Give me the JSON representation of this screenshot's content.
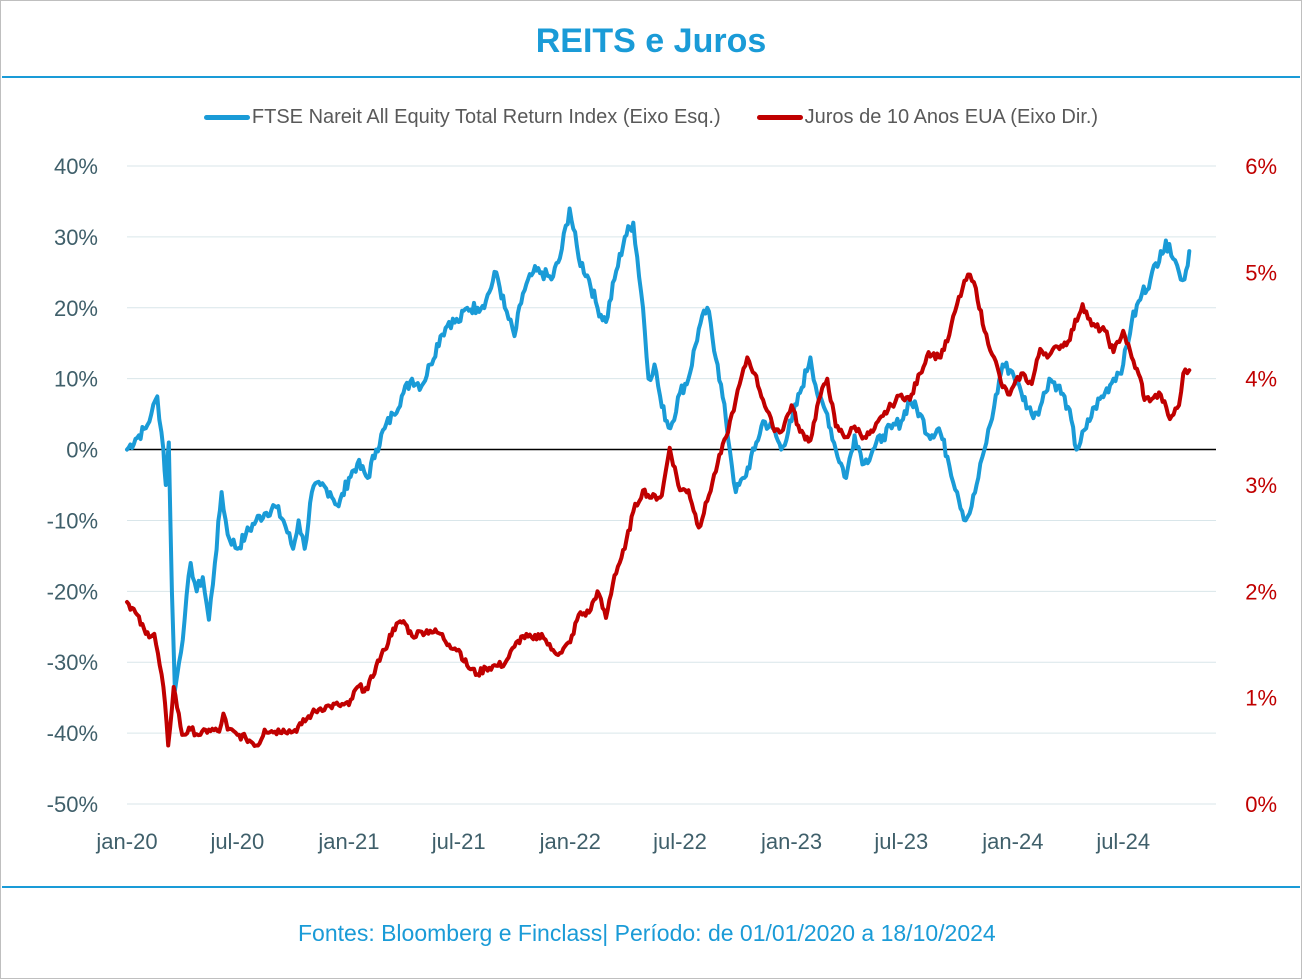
{
  "title": "REITS e Juros",
  "source_text": "Fontes: Bloomberg e Finclass| Período: de 01/01/2020 a 18/10/2024",
  "legend": [
    {
      "label": "FTSE Nareit All Equity Total Return Index (Eixo Esq.)",
      "color": "#1a9bd7"
    },
    {
      "label": "Juros de 10 Anos EUA (Eixo Dir.)",
      "color": "#c00000"
    }
  ],
  "chart_data": {
    "type": "line",
    "title": "REITS e Juros",
    "x_ticks": [
      "jan-20",
      "jul-20",
      "jan-21",
      "jul-21",
      "jan-22",
      "jul-22",
      "jan-23",
      "jul-23",
      "jan-24",
      "jul-24"
    ],
    "y_left": {
      "ticks": [
        "40%",
        "30%",
        "20%",
        "10%",
        "0%",
        "-10%",
        "-20%",
        "-30%",
        "-40%",
        "-50%"
      ],
      "range": [
        -50,
        40
      ],
      "unit": "%"
    },
    "y_right": {
      "ticks": [
        "6%",
        "5%",
        "4%",
        "3%",
        "2%",
        "1%",
        "0%"
      ],
      "range": [
        0,
        6
      ],
      "unit": "%"
    },
    "grid": "horizontal",
    "legend_position": "top",
    "series": [
      {
        "name": "FTSE Nareit All Equity Total Return Index (Eixo Esq.)",
        "axis": "left",
        "color": "#1a9bd7",
        "points": [
          [
            "2020-01-01",
            0
          ],
          [
            "2020-01-15",
            1.5
          ],
          [
            "2020-02-01",
            3
          ],
          [
            "2020-02-10",
            5
          ],
          [
            "2020-02-20",
            7.5
          ],
          [
            "2020-03-01",
            0
          ],
          [
            "2020-03-05",
            -5
          ],
          [
            "2020-03-10",
            1
          ],
          [
            "2020-03-15",
            -20
          ],
          [
            "2020-03-20",
            -34
          ],
          [
            "2020-03-27",
            -30
          ],
          [
            "2020-04-05",
            -24
          ],
          [
            "2020-04-15",
            -16
          ],
          [
            "2020-04-25",
            -20
          ],
          [
            "2020-05-05",
            -18
          ],
          [
            "2020-05-15",
            -24
          ],
          [
            "2020-05-25",
            -16
          ],
          [
            "2020-06-05",
            -6
          ],
          [
            "2020-06-15",
            -12
          ],
          [
            "2020-07-01",
            -14
          ],
          [
            "2020-07-15",
            -12
          ],
          [
            "2020-08-01",
            -10
          ],
          [
            "2020-08-15",
            -9
          ],
          [
            "2020-09-01",
            -8
          ],
          [
            "2020-09-15",
            -10
          ],
          [
            "2020-10-01",
            -14
          ],
          [
            "2020-10-10",
            -10
          ],
          [
            "2020-10-20",
            -14
          ],
          [
            "2020-11-01",
            -6
          ],
          [
            "2020-11-15",
            -5
          ],
          [
            "2020-12-01",
            -6
          ],
          [
            "2020-12-15",
            -8
          ],
          [
            "2021-01-01",
            -4
          ],
          [
            "2021-01-15",
            -2
          ],
          [
            "2021-02-01",
            -4
          ],
          [
            "2021-02-15",
            0
          ],
          [
            "2021-03-01",
            3
          ],
          [
            "2021-03-15",
            5
          ],
          [
            "2021-04-01",
            8
          ],
          [
            "2021-04-15",
            10
          ],
          [
            "2021-05-01",
            9
          ],
          [
            "2021-05-15",
            12
          ],
          [
            "2021-06-01",
            16
          ],
          [
            "2021-06-15",
            18
          ],
          [
            "2021-07-01",
            18
          ],
          [
            "2021-07-15",
            20
          ],
          [
            "2021-08-01",
            20
          ],
          [
            "2021-08-15",
            21
          ],
          [
            "2021-09-01",
            25
          ],
          [
            "2021-09-15",
            20
          ],
          [
            "2021-10-01",
            16
          ],
          [
            "2021-10-15",
            22
          ],
          [
            "2021-11-01",
            25
          ],
          [
            "2021-11-15",
            25
          ],
          [
            "2021-12-01",
            24
          ],
          [
            "2021-12-15",
            27
          ],
          [
            "2021-12-31",
            34
          ],
          [
            "2022-01-15",
            27
          ],
          [
            "2022-02-01",
            24
          ],
          [
            "2022-02-15",
            20
          ],
          [
            "2022-03-01",
            18
          ],
          [
            "2022-03-15",
            24
          ],
          [
            "2022-04-01",
            30
          ],
          [
            "2022-04-15",
            32
          ],
          [
            "2022-05-01",
            20
          ],
          [
            "2022-05-10",
            10
          ],
          [
            "2022-05-20",
            12
          ],
          [
            "2022-06-01",
            6
          ],
          [
            "2022-06-15",
            3
          ],
          [
            "2022-07-01",
            8
          ],
          [
            "2022-07-15",
            10
          ],
          [
            "2022-08-01",
            17
          ],
          [
            "2022-08-15",
            20
          ],
          [
            "2022-09-01",
            12
          ],
          [
            "2022-09-15",
            4
          ],
          [
            "2022-10-01",
            -6
          ],
          [
            "2022-10-15",
            -4
          ],
          [
            "2022-11-01",
            0
          ],
          [
            "2022-11-15",
            4
          ],
          [
            "2022-12-01",
            3
          ],
          [
            "2022-12-15",
            0
          ],
          [
            "2023-01-01",
            4
          ],
          [
            "2023-01-15",
            8
          ],
          [
            "2023-02-01",
            13
          ],
          [
            "2023-02-15",
            7
          ],
          [
            "2023-03-01",
            5
          ],
          [
            "2023-03-15",
            0
          ],
          [
            "2023-04-01",
            -4
          ],
          [
            "2023-04-15",
            2
          ],
          [
            "2023-05-01",
            -2
          ],
          [
            "2023-05-15",
            0
          ],
          [
            "2023-06-01",
            2
          ],
          [
            "2023-06-15",
            3
          ],
          [
            "2023-07-01",
            4
          ],
          [
            "2023-07-15",
            7
          ],
          [
            "2023-08-01",
            5
          ],
          [
            "2023-08-15",
            2
          ],
          [
            "2023-09-01",
            3
          ],
          [
            "2023-09-15",
            -1
          ],
          [
            "2023-10-01",
            -6
          ],
          [
            "2023-10-15",
            -10
          ],
          [
            "2023-10-25",
            -8
          ],
          [
            "2023-11-05",
            -4
          ],
          [
            "2023-11-15",
            0
          ],
          [
            "2023-12-01",
            6
          ],
          [
            "2023-12-15",
            12
          ],
          [
            "2023-12-31",
            11
          ],
          [
            "2024-01-15",
            8
          ],
          [
            "2024-02-01",
            5
          ],
          [
            "2024-02-15",
            6
          ],
          [
            "2024-03-01",
            10
          ],
          [
            "2024-03-15",
            9
          ],
          [
            "2024-04-01",
            6
          ],
          [
            "2024-04-15",
            0
          ],
          [
            "2024-05-01",
            3
          ],
          [
            "2024-05-15",
            6
          ],
          [
            "2024-06-01",
            8
          ],
          [
            "2024-06-15",
            10
          ],
          [
            "2024-07-01",
            12
          ],
          [
            "2024-07-15",
            18
          ],
          [
            "2024-08-01",
            22
          ],
          [
            "2024-08-15",
            24
          ],
          [
            "2024-09-01",
            28
          ],
          [
            "2024-09-15",
            29
          ],
          [
            "2024-10-01",
            25
          ],
          [
            "2024-10-10",
            24
          ],
          [
            "2024-10-18",
            28
          ]
        ]
      },
      {
        "name": "Juros de 10 Anos EUA (Eixo Dir.)",
        "axis": "right",
        "color": "#c00000",
        "points": [
          [
            "2020-01-01",
            1.9
          ],
          [
            "2020-01-15",
            1.8
          ],
          [
            "2020-02-01",
            1.6
          ],
          [
            "2020-02-15",
            1.6
          ],
          [
            "2020-03-01",
            1.1
          ],
          [
            "2020-03-09",
            0.55
          ],
          [
            "2020-03-18",
            1.1
          ],
          [
            "2020-04-01",
            0.65
          ],
          [
            "2020-04-15",
            0.7
          ],
          [
            "2020-05-01",
            0.65
          ],
          [
            "2020-05-15",
            0.7
          ],
          [
            "2020-06-01",
            0.68
          ],
          [
            "2020-06-08",
            0.85
          ],
          [
            "2020-06-15",
            0.7
          ],
          [
            "2020-07-01",
            0.65
          ],
          [
            "2020-07-15",
            0.62
          ],
          [
            "2020-08-04",
            0.55
          ],
          [
            "2020-08-15",
            0.7
          ],
          [
            "2020-09-01",
            0.68
          ],
          [
            "2020-09-15",
            0.7
          ],
          [
            "2020-10-01",
            0.68
          ],
          [
            "2020-10-15",
            0.75
          ],
          [
            "2020-11-01",
            0.85
          ],
          [
            "2020-11-15",
            0.9
          ],
          [
            "2020-12-01",
            0.92
          ],
          [
            "2020-12-15",
            0.93
          ],
          [
            "2021-01-01",
            0.93
          ],
          [
            "2021-01-15",
            1.1
          ],
          [
            "2021-02-01",
            1.08
          ],
          [
            "2021-02-15",
            1.3
          ],
          [
            "2021-03-01",
            1.45
          ],
          [
            "2021-03-15",
            1.65
          ],
          [
            "2021-04-01",
            1.72
          ],
          [
            "2021-04-15",
            1.58
          ],
          [
            "2021-05-01",
            1.62
          ],
          [
            "2021-05-15",
            1.63
          ],
          [
            "2021-06-01",
            1.6
          ],
          [
            "2021-06-15",
            1.5
          ],
          [
            "2021-07-01",
            1.45
          ],
          [
            "2021-07-15",
            1.3
          ],
          [
            "2021-08-01",
            1.22
          ],
          [
            "2021-08-15",
            1.28
          ],
          [
            "2021-09-01",
            1.3
          ],
          [
            "2021-09-15",
            1.32
          ],
          [
            "2021-10-01",
            1.48
          ],
          [
            "2021-10-15",
            1.58
          ],
          [
            "2021-11-01",
            1.55
          ],
          [
            "2021-11-15",
            1.6
          ],
          [
            "2021-12-01",
            1.45
          ],
          [
            "2021-12-15",
            1.42
          ],
          [
            "2022-01-01",
            1.52
          ],
          [
            "2022-01-15",
            1.78
          ],
          [
            "2022-02-01",
            1.8
          ],
          [
            "2022-02-15",
            2.0
          ],
          [
            "2022-03-01",
            1.75
          ],
          [
            "2022-03-15",
            2.15
          ],
          [
            "2022-04-01",
            2.4
          ],
          [
            "2022-04-15",
            2.75
          ],
          [
            "2022-05-01",
            2.95
          ],
          [
            "2022-05-15",
            2.88
          ],
          [
            "2022-06-01",
            2.9
          ],
          [
            "2022-06-14",
            3.35
          ],
          [
            "2022-07-01",
            2.95
          ],
          [
            "2022-07-15",
            2.95
          ],
          [
            "2022-08-01",
            2.6
          ],
          [
            "2022-08-15",
            2.85
          ],
          [
            "2022-09-01",
            3.2
          ],
          [
            "2022-09-15",
            3.45
          ],
          [
            "2022-10-01",
            3.8
          ],
          [
            "2022-10-20",
            4.2
          ],
          [
            "2022-11-01",
            4.05
          ],
          [
            "2022-11-15",
            3.8
          ],
          [
            "2022-12-01",
            3.55
          ],
          [
            "2022-12-15",
            3.5
          ],
          [
            "2023-01-01",
            3.75
          ],
          [
            "2023-01-15",
            3.5
          ],
          [
            "2023-02-01",
            3.42
          ],
          [
            "2023-02-15",
            3.8
          ],
          [
            "2023-03-01",
            4.0
          ],
          [
            "2023-03-15",
            3.55
          ],
          [
            "2023-04-01",
            3.45
          ],
          [
            "2023-04-15",
            3.55
          ],
          [
            "2023-05-01",
            3.45
          ],
          [
            "2023-05-15",
            3.5
          ],
          [
            "2023-06-01",
            3.65
          ],
          [
            "2023-06-15",
            3.75
          ],
          [
            "2023-07-01",
            3.85
          ],
          [
            "2023-07-15",
            3.8
          ],
          [
            "2023-08-01",
            4.05
          ],
          [
            "2023-08-15",
            4.25
          ],
          [
            "2023-09-01",
            4.2
          ],
          [
            "2023-09-15",
            4.35
          ],
          [
            "2023-10-01",
            4.7
          ],
          [
            "2023-10-19",
            4.98
          ],
          [
            "2023-11-01",
            4.85
          ],
          [
            "2023-11-15",
            4.45
          ],
          [
            "2023-12-01",
            4.2
          ],
          [
            "2023-12-15",
            3.92
          ],
          [
            "2023-12-27",
            3.85
          ],
          [
            "2024-01-15",
            4.05
          ],
          [
            "2024-02-01",
            3.95
          ],
          [
            "2024-02-15",
            4.28
          ],
          [
            "2024-03-01",
            4.22
          ],
          [
            "2024-03-15",
            4.3
          ],
          [
            "2024-04-01",
            4.35
          ],
          [
            "2024-04-25",
            4.7
          ],
          [
            "2024-05-10",
            4.5
          ],
          [
            "2024-06-01",
            4.45
          ],
          [
            "2024-06-15",
            4.25
          ],
          [
            "2024-07-01",
            4.45
          ],
          [
            "2024-07-15",
            4.2
          ],
          [
            "2024-08-01",
            3.95
          ],
          [
            "2024-08-05",
            3.8
          ],
          [
            "2024-08-20",
            3.82
          ],
          [
            "2024-09-01",
            3.85
          ],
          [
            "2024-09-16",
            3.62
          ],
          [
            "2024-10-01",
            3.75
          ],
          [
            "2024-10-08",
            4.05
          ],
          [
            "2024-10-18",
            4.08
          ]
        ]
      }
    ]
  }
}
